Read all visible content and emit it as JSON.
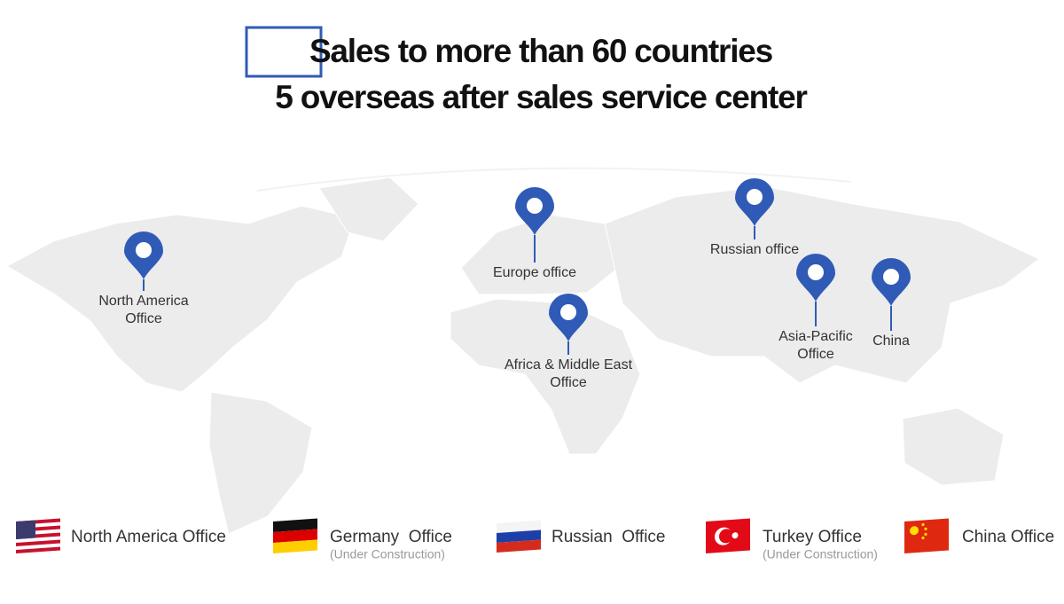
{
  "header": {
    "title_lines": [
      "Sales to more than 60 countries",
      "5 overseas after sales service center"
    ]
  },
  "pins": [
    {
      "label": [
        "North America",
        "Office"
      ]
    },
    {
      "label": [
        "Europe office"
      ]
    },
    {
      "label": [
        "Africa & Middle East",
        "Office"
      ]
    },
    {
      "label": [
        "Russian office"
      ]
    },
    {
      "label": [
        "Asia-Pacific",
        "Office"
      ]
    },
    {
      "label": [
        "China"
      ]
    }
  ],
  "legend": [
    {
      "name": "North America Office"
    },
    {
      "name": "Germany  Office",
      "note": "(Under Construction)"
    },
    {
      "name": "Russian  Office"
    },
    {
      "name": "Turkey Office",
      "note": "(Under Construction)"
    },
    {
      "name": "China Office"
    }
  ]
}
